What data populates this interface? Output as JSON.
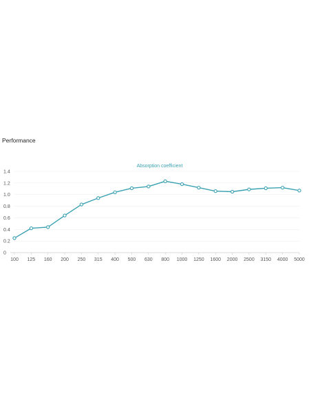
{
  "section": {
    "title": "Performance"
  },
  "colors": {
    "series": "#3aa1b1",
    "grid": "#eeeeee",
    "axis": "#cccccc",
    "tick_text": "#555555",
    "title_text": "#3aa1b1",
    "point_fill": "#ffffff"
  },
  "chart_data": {
    "type": "line",
    "title": "Absorption coefficient",
    "xlabel": "",
    "ylabel": "",
    "categories": [
      "100",
      "125",
      "160",
      "200",
      "250",
      "315",
      "400",
      "500",
      "630",
      "800",
      "1000",
      "1250",
      "1600",
      "2000",
      "2500",
      "3150",
      "4000",
      "5000"
    ],
    "series": [
      {
        "values": [
          0.25,
          0.42,
          0.44,
          0.64,
          0.83,
          0.94,
          1.04,
          1.11,
          1.14,
          1.23,
          1.18,
          1.12,
          1.06,
          1.05,
          1.09,
          1.11,
          1.12,
          1.07
        ]
      }
    ],
    "ylim": [
      0,
      1.4
    ],
    "yticks": [
      "0",
      "0.2",
      "0.4",
      "0.6",
      "0.8",
      "1.0",
      "1.2",
      "1.4"
    ],
    "grid": true,
    "legend": "none"
  }
}
